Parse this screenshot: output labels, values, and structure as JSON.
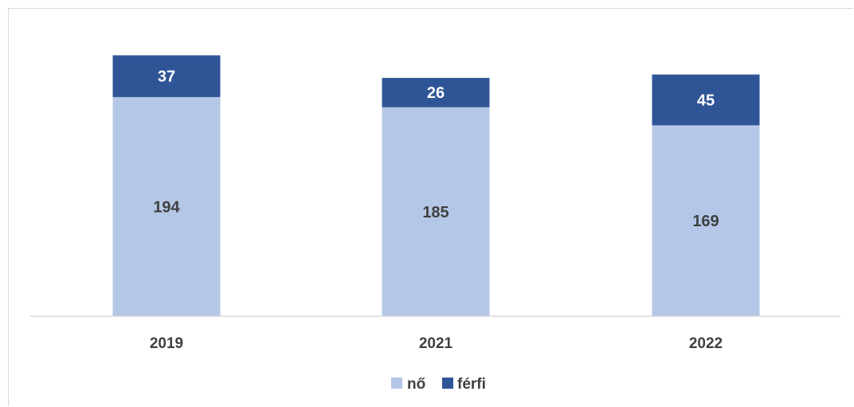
{
  "chart_data": {
    "type": "bar",
    "stacked": true,
    "categories": [
      "2019",
      "2021",
      "2022"
    ],
    "series": [
      {
        "name": "nő",
        "values": [
          194,
          185,
          169
        ],
        "color": "#b4c7e7",
        "label_color": "#404040"
      },
      {
        "name": "férfi",
        "values": [
          37,
          26,
          45
        ],
        "color": "#2f5597",
        "label_color": "#ffffff"
      }
    ],
    "ylim": [
      0,
      250
    ],
    "grid": false,
    "legend_position": "bottom"
  }
}
